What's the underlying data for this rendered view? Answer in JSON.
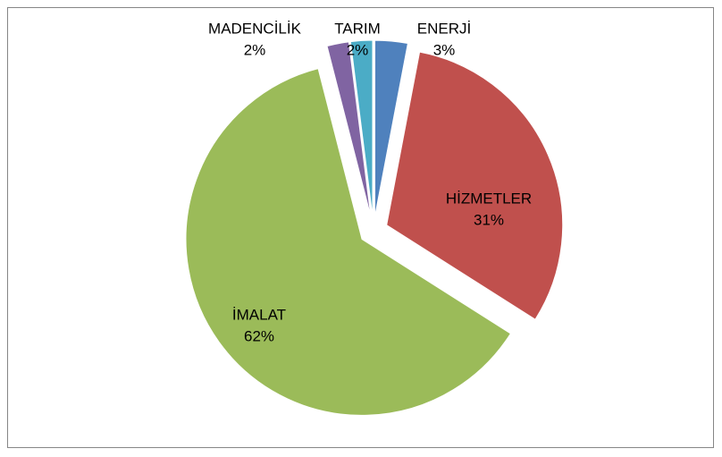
{
  "chart_data": {
    "type": "pie",
    "categories": [
      "ENERJİ",
      "HİZMETLER",
      "İMALAT",
      "MADENCİLİK",
      "TARIM"
    ],
    "values": [
      3,
      31,
      62,
      2,
      2
    ],
    "value_labels": [
      "3%",
      "31%",
      "62%",
      "2%",
      "2%"
    ],
    "colors": [
      "#4f81bd",
      "#c0504d",
      "#9bbb59",
      "#8064a2",
      "#4bacc6"
    ],
    "exploded": true
  }
}
